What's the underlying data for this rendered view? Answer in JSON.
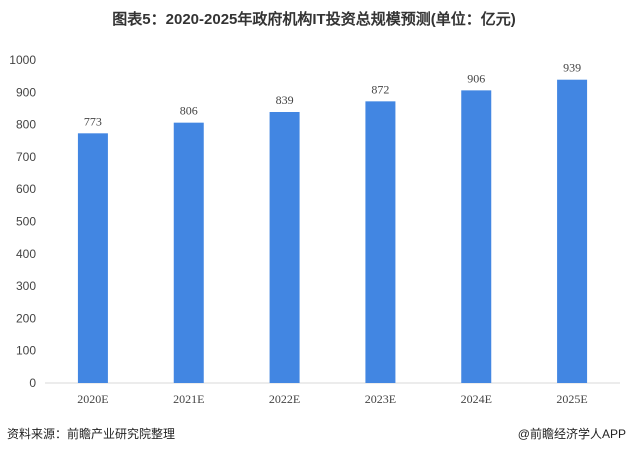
{
  "chart_data": {
    "type": "bar",
    "title": "图表5：2020-2025年政府机构IT投资总规模预测(单位：亿元)",
    "categories": [
      "2020E",
      "2021E",
      "2022E",
      "2023E",
      "2024E",
      "2025E"
    ],
    "values": [
      773,
      806,
      839,
      872,
      906,
      939
    ],
    "ylim": [
      0,
      1000
    ],
    "yticks": [
      0,
      100,
      200,
      300,
      400,
      500,
      600,
      700,
      800,
      900,
      1000
    ],
    "grid": false,
    "bar_color": "#4286E2",
    "xlabel": "",
    "ylabel": ""
  },
  "footer": {
    "source": "资料来源：前瞻产业研究院整理",
    "credit": "@前瞻经济学人APP"
  }
}
